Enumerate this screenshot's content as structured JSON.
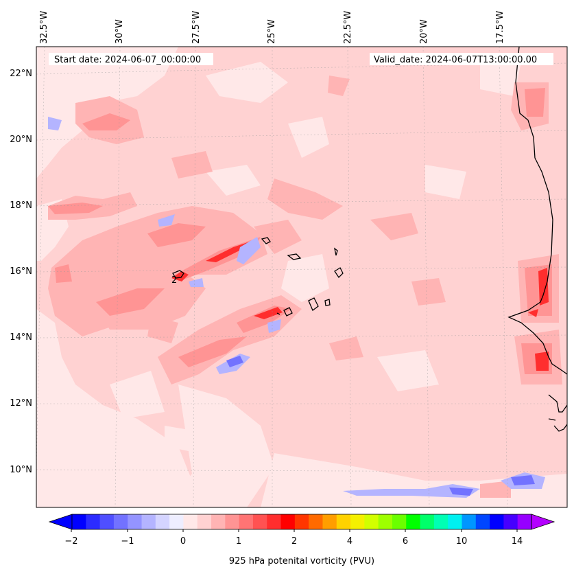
{
  "map": {
    "start_date": "Start date: 2024-06-07_00:00:00",
    "valid_date": "Valid_date: 2024-06-07T13:00:00.00",
    "lon_labels": [
      "32.5°W",
      "30°W",
      "27.5°W",
      "25°W",
      "22.5°W",
      "20°W",
      "17.5°W"
    ],
    "lat_labels": [
      "22°N",
      "20°N",
      "18°N",
      "16°N",
      "14°N",
      "12°N",
      "10°N"
    ],
    "contour_label": "2",
    "gridlines": true
  },
  "colorbar": {
    "label": "925 hPa potenital vorticity (PVU)",
    "ticks": [
      "−2",
      "−1",
      "0",
      "1",
      "2",
      "4",
      "6",
      "10",
      "14"
    ],
    "colors": [
      "#0000ff",
      "#2b2bff",
      "#4f4fff",
      "#7272ff",
      "#9494ff",
      "#b4b4ff",
      "#d4d4ff",
      "#eeeeff",
      "#ffe8e8",
      "#ffd2d2",
      "#ffb4b4",
      "#ff9494",
      "#ff7474",
      "#ff5252",
      "#ff2e2e",
      "#ff0000",
      "#ff3600",
      "#ff6a00",
      "#ff9e00",
      "#ffd200",
      "#f5f000",
      "#d2ff00",
      "#9eff00",
      "#6aff00",
      "#00ff00",
      "#00ff6a",
      "#00ffb4",
      "#00f0f0",
      "#0096ff",
      "#0046ff",
      "#0000ff",
      "#4600ff",
      "#9600ff"
    ],
    "under_color": "#0000ff",
    "over_color": "#b400ff"
  },
  "colors": {
    "ocean_background": "#ffd2d2",
    "light_pink": "#ffe8e8",
    "medium_pink": "#ffb4b4",
    "strong_red": "#ff2e2e",
    "negative_blue": "#b4b4ff",
    "coastline": "#000000"
  }
}
